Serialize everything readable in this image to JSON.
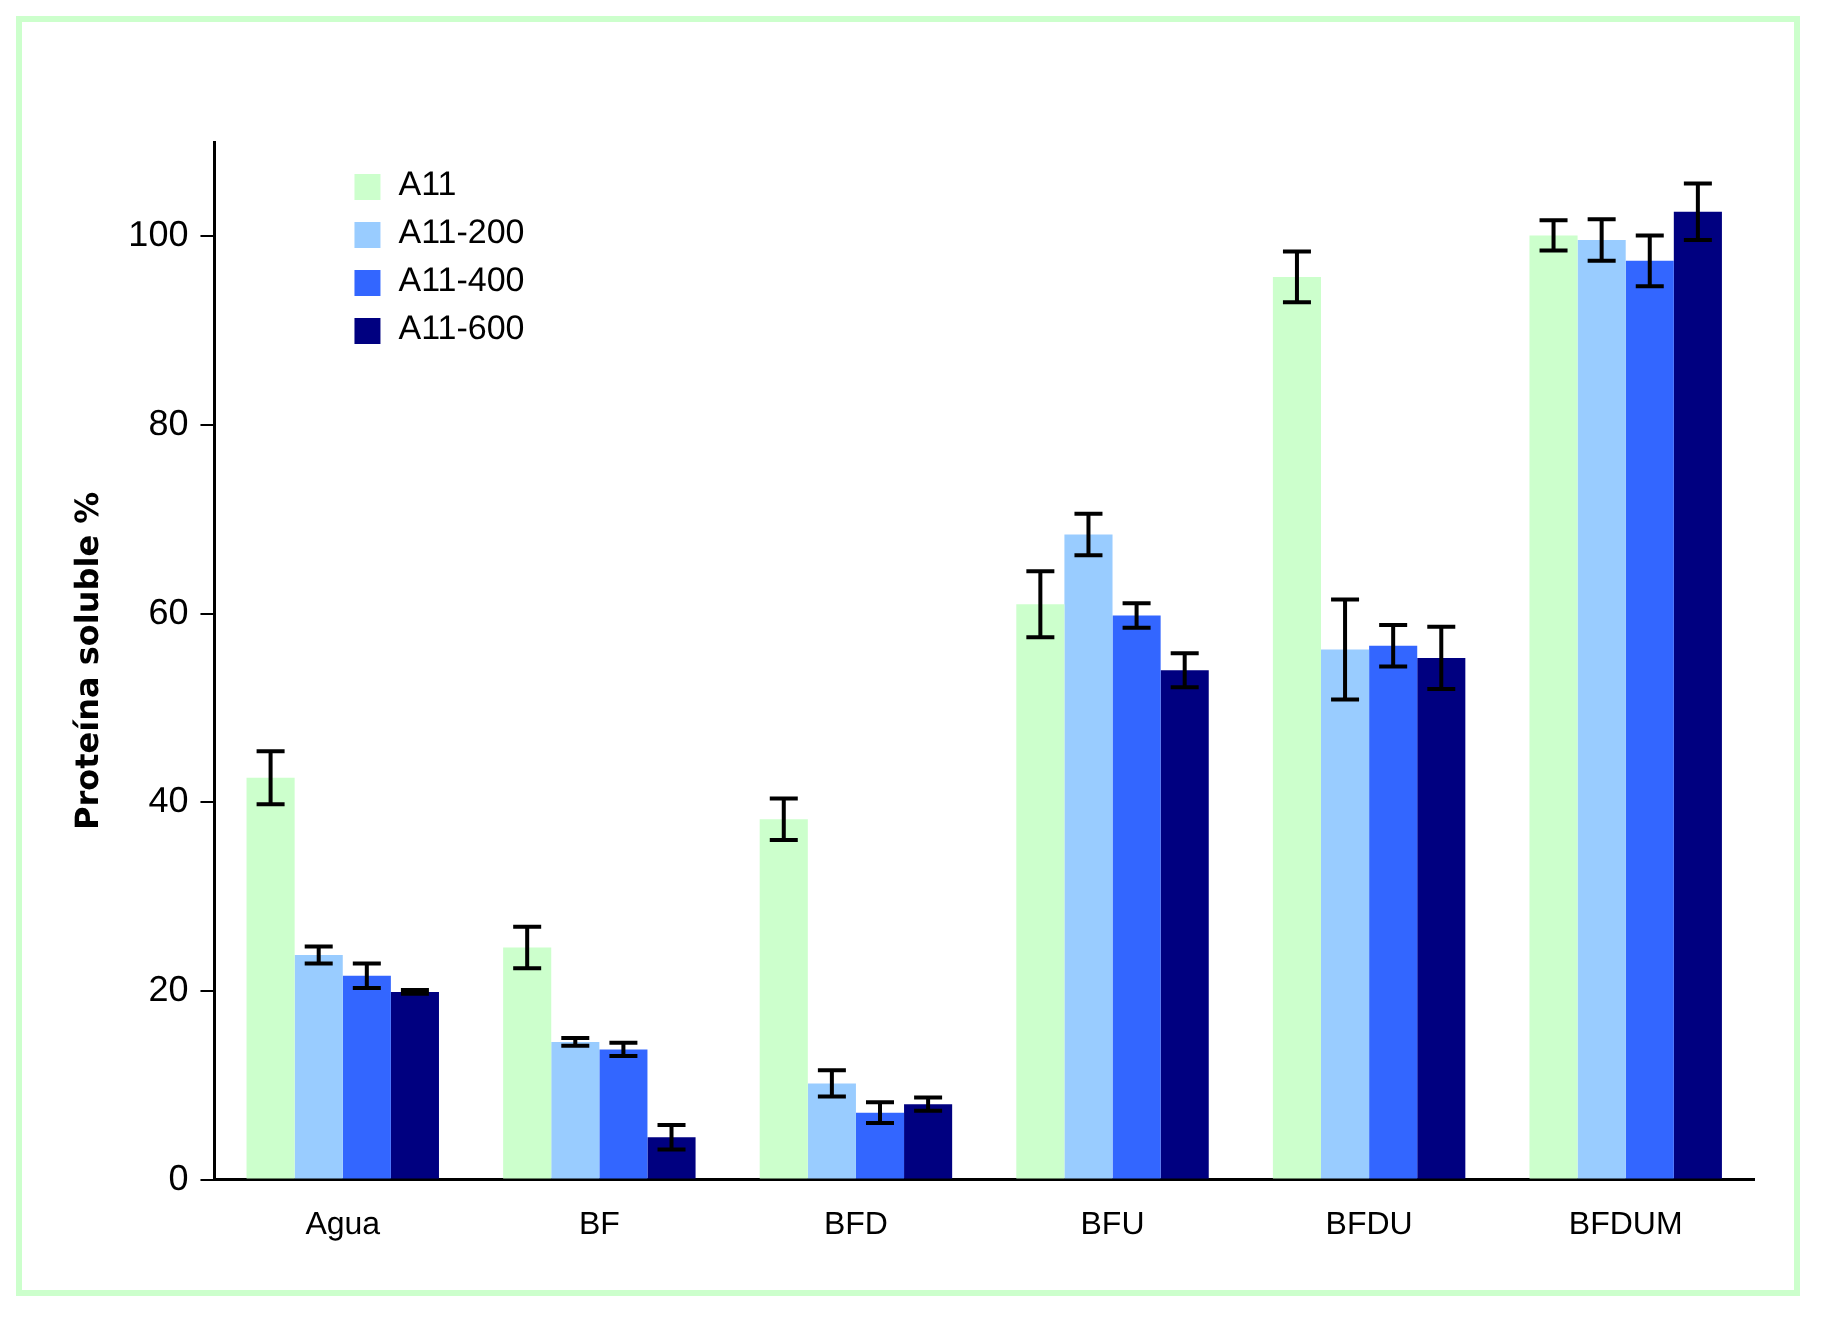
{
  "chart_data": {
    "type": "bar",
    "ylabel": "Proteína soluble %",
    "categories": [
      "Agua",
      "BF",
      "BFD",
      "BFU",
      "BFDU",
      "BFDUM"
    ],
    "series": [
      {
        "name": "A11",
        "color": "#ccffcc",
        "values": [
          42.6,
          24.6,
          38.2,
          61.0,
          95.7,
          100.1
        ],
        "errors": [
          2.8,
          2.2,
          2.2,
          3.5,
          2.7,
          1.6
        ]
      },
      {
        "name": "A11-200",
        "color": "#99ccff",
        "values": [
          23.8,
          14.6,
          10.2,
          68.4,
          56.2,
          99.6
        ],
        "errors": [
          0.9,
          0.4,
          1.4,
          2.2,
          5.3,
          2.2
        ]
      },
      {
        "name": "A11-400",
        "color": "#3366ff",
        "values": [
          21.6,
          13.8,
          7.1,
          59.8,
          56.6,
          97.4
        ],
        "errors": [
          1.3,
          0.7,
          1.1,
          1.3,
          2.2,
          2.7
        ]
      },
      {
        "name": "A11-600",
        "color": "#000080",
        "values": [
          19.9,
          4.5,
          8.0,
          54.0,
          55.3,
          102.6
        ],
        "errors": [
          0.2,
          1.3,
          0.7,
          1.8,
          3.3,
          3.0
        ]
      }
    ],
    "ylim": [
      0,
      110
    ],
    "yticks": [
      0,
      20,
      40,
      60,
      80,
      100
    ],
    "grid": false,
    "legend": "top left"
  }
}
